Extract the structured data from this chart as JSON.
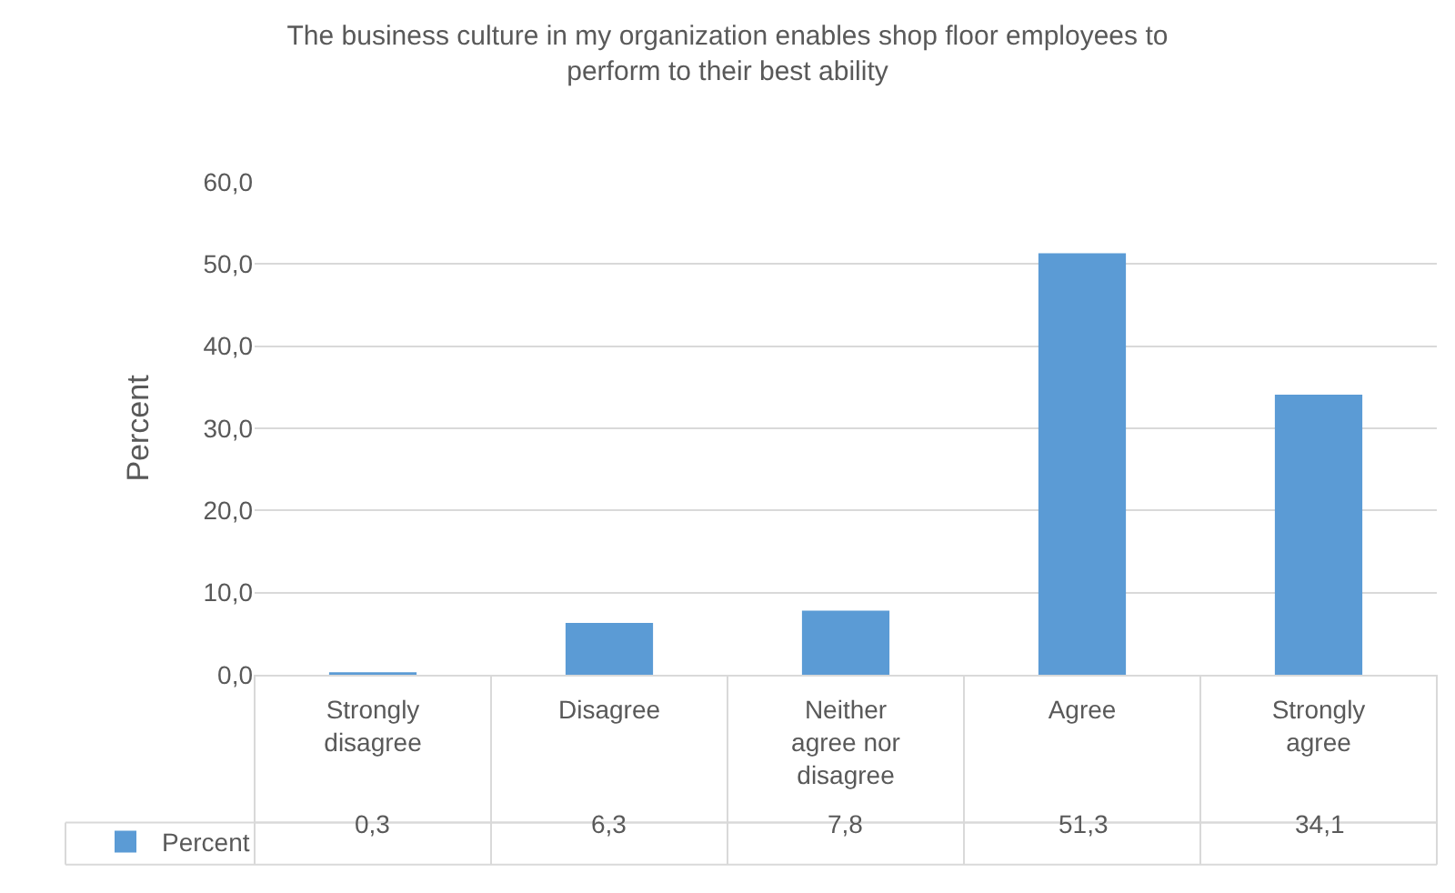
{
  "chart_data": {
    "type": "bar",
    "title": "The business culture in my organization enables shop floor employees to perform to their best ability",
    "ylabel": "Percent",
    "categories": [
      "Strongly disagree",
      "Disagree",
      "Neither agree nor disagree",
      "Agree",
      "Strongly agree"
    ],
    "series": [
      {
        "name": "Percent",
        "color": "#5b9bd5",
        "values": [
          0.3,
          6.3,
          7.8,
          51.3,
          34.1
        ],
        "value_labels": [
          "0,3",
          "6,3",
          "7,8",
          "51,3",
          "34,1"
        ]
      }
    ],
    "ylim": [
      0,
      60
    ],
    "yticks": [
      {
        "value": 0,
        "label": "0,0"
      },
      {
        "value": 10,
        "label": "10,0"
      },
      {
        "value": 20,
        "label": "20,0"
      },
      {
        "value": 30,
        "label": "30,0"
      },
      {
        "value": 40,
        "label": "40,0"
      },
      {
        "value": 50,
        "label": "50,0"
      },
      {
        "value": 60,
        "label": "60,0"
      }
    ],
    "grid": "y",
    "legend": "bottom left"
  }
}
